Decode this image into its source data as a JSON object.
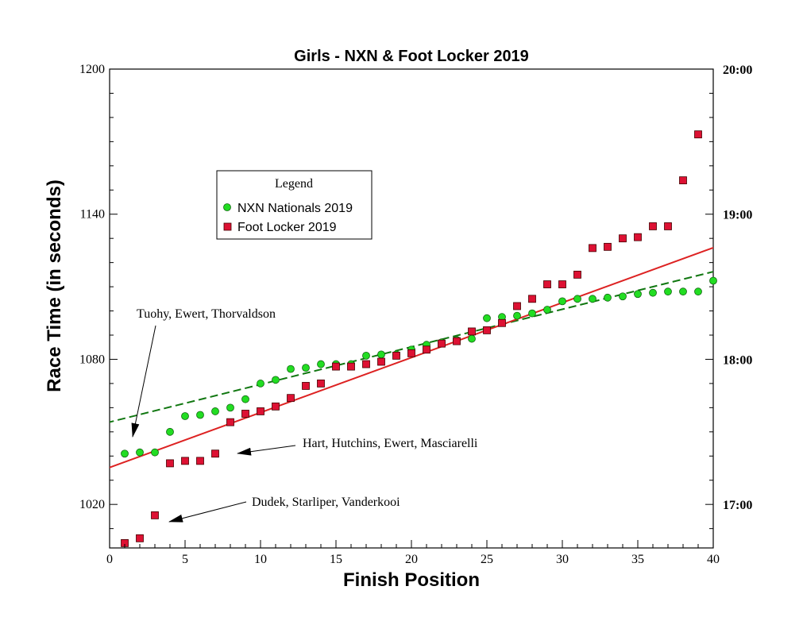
{
  "chart_data": {
    "type": "scatter",
    "title": "Girls - NXN & Foot Locker 2019",
    "xlabel": "Finish Position",
    "ylabel": "Race Time (in seconds)",
    "xlim": [
      0,
      40
    ],
    "ylim": [
      1002,
      1200
    ],
    "xticks": [
      "0",
      "5",
      "10",
      "15",
      "20",
      "25",
      "30",
      "35",
      "40"
    ],
    "yticks": [
      "1020",
      "1080",
      "1140",
      "1200"
    ],
    "y2ticks": [
      "17:00",
      "18:00",
      "19:00",
      "20:00"
    ],
    "grid": false,
    "legend": {
      "title": "Legend",
      "placement": "upper-left"
    },
    "series": [
      {
        "name": "NXN Nationals 2019",
        "marker": "circle",
        "color": "#22dd22",
        "x": [
          1,
          2,
          3,
          4,
          5,
          6,
          7,
          8,
          9,
          10,
          11,
          12,
          13,
          14,
          15,
          16,
          17,
          18,
          19,
          20,
          21,
          22,
          23,
          24,
          25,
          26,
          27,
          28,
          29,
          30,
          31,
          32,
          33,
          34,
          35,
          36,
          37,
          38,
          39,
          40
        ],
        "y": [
          1041,
          1041.5,
          1041.5,
          1050,
          1056.5,
          1057,
          1058.5,
          1060,
          1063.5,
          1070,
          1071.5,
          1076,
          1076.5,
          1078,
          1078,
          1078,
          1081.5,
          1082,
          1082,
          1084,
          1086,
          1087,
          1088,
          1088.5,
          1097,
          1097.5,
          1098,
          1099,
          1100.5,
          1104,
          1105,
          1105,
          1105.5,
          1106,
          1107,
          1107.5,
          1108,
          1108,
          1108,
          1112.5
        ]
      },
      {
        "name": "Foot Locker 2019",
        "marker": "square",
        "color": "#dd1133",
        "x": [
          1,
          2,
          3,
          4,
          5,
          6,
          7,
          8,
          9,
          10,
          11,
          12,
          13,
          14,
          15,
          16,
          17,
          18,
          19,
          20,
          21,
          22,
          23,
          24,
          25,
          26,
          27,
          28,
          29,
          30,
          31,
          32,
          33,
          34,
          35,
          36,
          37,
          38,
          39
        ],
        "y": [
          1004,
          1006,
          1015.5,
          1037,
          1038,
          1038,
          1041,
          1054,
          1057.5,
          1058.5,
          1060.5,
          1064,
          1069,
          1070,
          1077,
          1077,
          1078,
          1079,
          1081.5,
          1082.5,
          1084,
          1086.5,
          1087.5,
          1091.5,
          1092,
          1095,
          1102,
          1105,
          1111,
          1111,
          1115,
          1126,
          1126.5,
          1130,
          1130.5,
          1135,
          1135,
          1154,
          1173
        ]
      }
    ],
    "trendlines": [
      {
        "series": "NXN Nationals 2019",
        "style": "dashed",
        "color": "#117711",
        "x": [
          -1,
          45
        ],
        "y": [
          1052.5,
          1124
        ]
      },
      {
        "series": "Foot Locker 2019",
        "style": "solid",
        "color": "#dd2222",
        "x": [
          -1,
          45
        ],
        "y": [
          1033,
          1137.5
        ]
      }
    ],
    "annotations": [
      {
        "text": "Tuohy, Ewert, Thorvaldson"
      },
      {
        "text": "Hart, Hutchins, Ewert, Masciarelli"
      },
      {
        "text": "Dudek, Starliper, Vanderkooi"
      }
    ]
  }
}
